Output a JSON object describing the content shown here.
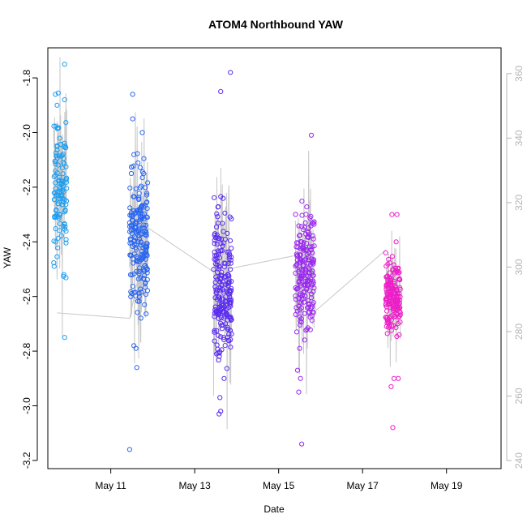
{
  "chart_data": {
    "type": "scatter",
    "title": "ATOM4 Northbound YAW",
    "xlabel": "Date",
    "ylabel": "YAW",
    "x_tick_labels": [
      "May 11",
      "May 13",
      "May 15",
      "May 17",
      "May 19"
    ],
    "x_ticks_day": [
      11,
      13,
      15,
      17,
      19
    ],
    "xlim_day": [
      9.5,
      20.3
    ],
    "ylim": [
      -3.23,
      -1.69
    ],
    "y_ticks": [
      -3.2,
      -3.0,
      -2.8,
      -2.6,
      -2.4,
      -2.2,
      -2.0,
      -1.8
    ],
    "y_tick_labels": [
      "-3.2",
      "-3.0",
      "-2.8",
      "-2.6",
      "-2.4",
      "-2.2",
      "-2.0",
      "-1.8"
    ],
    "y2lim": [
      237.5,
      368
    ],
    "y2_ticks": [
      240,
      260,
      280,
      300,
      320,
      340,
      360
    ],
    "y2_tick_labels": [
      "240",
      "260",
      "280",
      "300",
      "320",
      "340",
      "360"
    ],
    "grid": false,
    "legend": "none",
    "line_color": "#c8c8c8",
    "clusters": [
      {
        "day_start": 9.64,
        "day_end": 9.95,
        "center": -2.2,
        "spread": 0.13,
        "n": 120,
        "color": "#1e9ef0",
        "outliers": [
          [
            9.9,
            -1.75
          ],
          [
            9.68,
            -1.86
          ],
          [
            9.72,
            -1.9
          ],
          [
            9.9,
            -1.88
          ],
          [
            9.88,
            -2.52
          ],
          [
            9.9,
            -2.75
          ],
          [
            9.65,
            -2.49
          ]
        ]
      },
      {
        "day_start": 11.45,
        "day_end": 11.88,
        "center": -2.4,
        "spread": 0.13,
        "n": 200,
        "color": "#2a66f0",
        "outliers": [
          [
            11.52,
            -1.86
          ],
          [
            11.52,
            -1.95
          ],
          [
            11.75,
            -2.0
          ],
          [
            11.45,
            -3.16
          ],
          [
            11.62,
            -2.86
          ],
          [
            11.6,
            -2.79
          ],
          [
            11.55,
            -2.78
          ]
        ]
      },
      {
        "day_start": 13.45,
        "day_end": 13.88,
        "center": -2.56,
        "spread": 0.13,
        "n": 210,
        "color": "#5a2cf0",
        "outliers": [
          [
            13.85,
            -1.78
          ],
          [
            13.62,
            -1.85
          ],
          [
            13.58,
            -3.03
          ],
          [
            13.62,
            -3.02
          ],
          [
            13.6,
            -2.97
          ],
          [
            13.7,
            -2.9
          ],
          [
            13.52,
            -2.81
          ]
        ]
      },
      {
        "day_start": 15.4,
        "day_end": 15.85,
        "center": -2.5,
        "spread": 0.11,
        "n": 190,
        "color": "#9a28f0",
        "outliers": [
          [
            15.78,
            -2.01
          ],
          [
            15.55,
            -3.14
          ],
          [
            15.48,
            -2.95
          ],
          [
            15.52,
            -2.9
          ],
          [
            15.45,
            -2.87
          ],
          [
            15.5,
            -2.79
          ]
        ]
      },
      {
        "day_start": 17.55,
        "day_end": 17.9,
        "center": -2.6,
        "spread": 0.07,
        "n": 170,
        "color": "#ee1ec8",
        "outliers": [
          [
            17.72,
            -3.08
          ],
          [
            17.68,
            -2.93
          ],
          [
            17.75,
            -2.9
          ],
          [
            17.85,
            -2.9
          ],
          [
            17.7,
            -2.3
          ],
          [
            17.82,
            -2.3
          ],
          [
            17.8,
            -2.4
          ]
        ]
      }
    ],
    "connector_path": [
      [
        9.72,
        -2.66
      ],
      [
        11.45,
        -2.68
      ],
      [
        11.9,
        -2.35
      ],
      [
        13.45,
        -2.51
      ],
      [
        15.4,
        -2.45
      ],
      [
        15.9,
        -2.65
      ],
      [
        17.55,
        -2.43
      ]
    ]
  }
}
